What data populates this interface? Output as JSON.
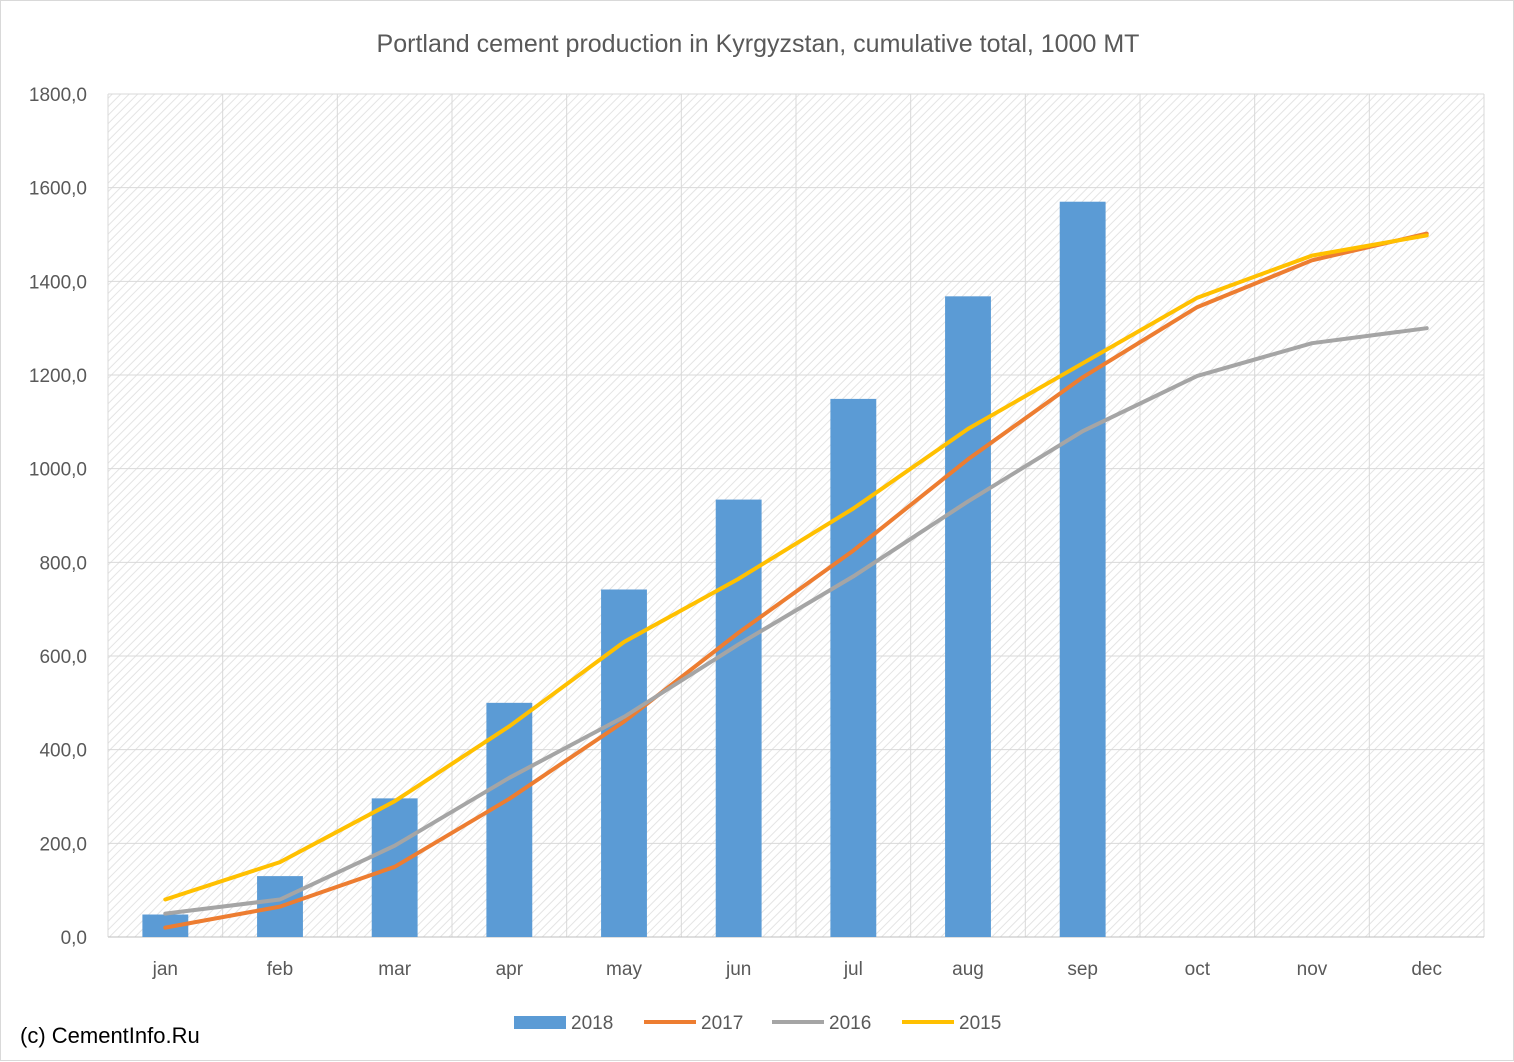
{
  "chart_data": {
    "type": "bar",
    "title": "Portland cement production in Kyrgyzstan, cumulative total, 1000 MT",
    "xlabel": "",
    "ylabel": "",
    "ylim": [
      0,
      1800
    ],
    "y_ticks": [
      0,
      200,
      400,
      600,
      800,
      1000,
      1200,
      1400,
      1600,
      1800
    ],
    "y_tick_labels": [
      "0,0",
      "200,0",
      "400,0",
      "600,0",
      "800,0",
      "1000,0",
      "1200,0",
      "1400,0",
      "1600,0",
      "1800,0"
    ],
    "categories": [
      "jan",
      "feb",
      "mar",
      "apr",
      "may",
      "jun",
      "jul",
      "aug",
      "sep",
      "oct",
      "nov",
      "dec"
    ],
    "grid": true,
    "legend_position": "bottom",
    "series": [
      {
        "name": "2018",
        "kind": "bar",
        "color": "#5B9BD5",
        "values": [
          48,
          130,
          296,
          500,
          742,
          934,
          1149,
          1368,
          1570,
          null,
          null,
          null
        ]
      },
      {
        "name": "2017",
        "kind": "line",
        "color": "#ED7D31",
        "values": [
          20,
          65,
          150,
          295,
          460,
          650,
          825,
          1020,
          1195,
          1345,
          1445,
          1502
        ]
      },
      {
        "name": "2016",
        "kind": "line",
        "color": "#A5A5A5",
        "values": [
          50,
          80,
          195,
          340,
          470,
          625,
          770,
          930,
          1080,
          1198,
          1268,
          1300
        ]
      },
      {
        "name": "2015",
        "kind": "line",
        "color": "#FFC000",
        "values": [
          80,
          160,
          290,
          450,
          630,
          765,
          915,
          1085,
          1225,
          1365,
          1455,
          1498
        ]
      }
    ]
  },
  "footer": {
    "copyright": "(c) CementInfo.Ru"
  }
}
